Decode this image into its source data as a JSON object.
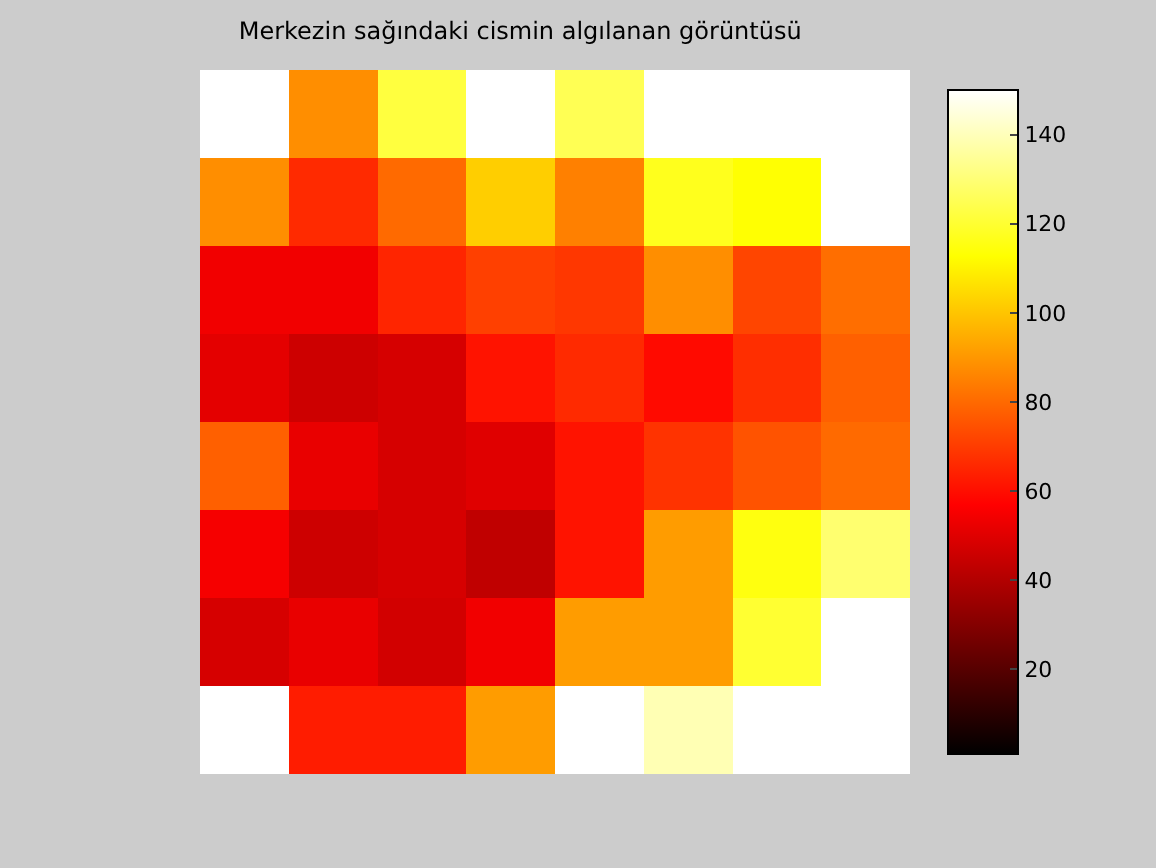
{
  "chart_data": {
    "type": "heatmap",
    "title": "Merkezin sağındaki cismin algılanan görüntüsü",
    "categories": [
      null,
      null,
      null,
      null,
      null,
      null,
      null,
      null
    ],
    "y_categories": [
      null,
      null,
      null,
      null,
      null,
      null,
      null,
      null
    ],
    "cells": [
      [
        150,
        88,
        122,
        150,
        125,
        150,
        150,
        150
      ],
      [
        88,
        66,
        80,
        102,
        85,
        117,
        113,
        150
      ],
      [
        54,
        54,
        65,
        71,
        69,
        88,
        72,
        81
      ],
      [
        51,
        46,
        48,
        61,
        66,
        59,
        67,
        78
      ],
      [
        78,
        52,
        48,
        50,
        61,
        68,
        75,
        80
      ],
      [
        55,
        46,
        48,
        43,
        61,
        91,
        115,
        129
      ],
      [
        48,
        52,
        47,
        54,
        91,
        91,
        120,
        150
      ],
      [
        150,
        63,
        63,
        91,
        150,
        139,
        150,
        150
      ]
    ],
    "clim": [
      1,
      150
    ],
    "cticks": [
      20,
      40,
      60,
      80,
      100,
      120,
      140
    ]
  }
}
